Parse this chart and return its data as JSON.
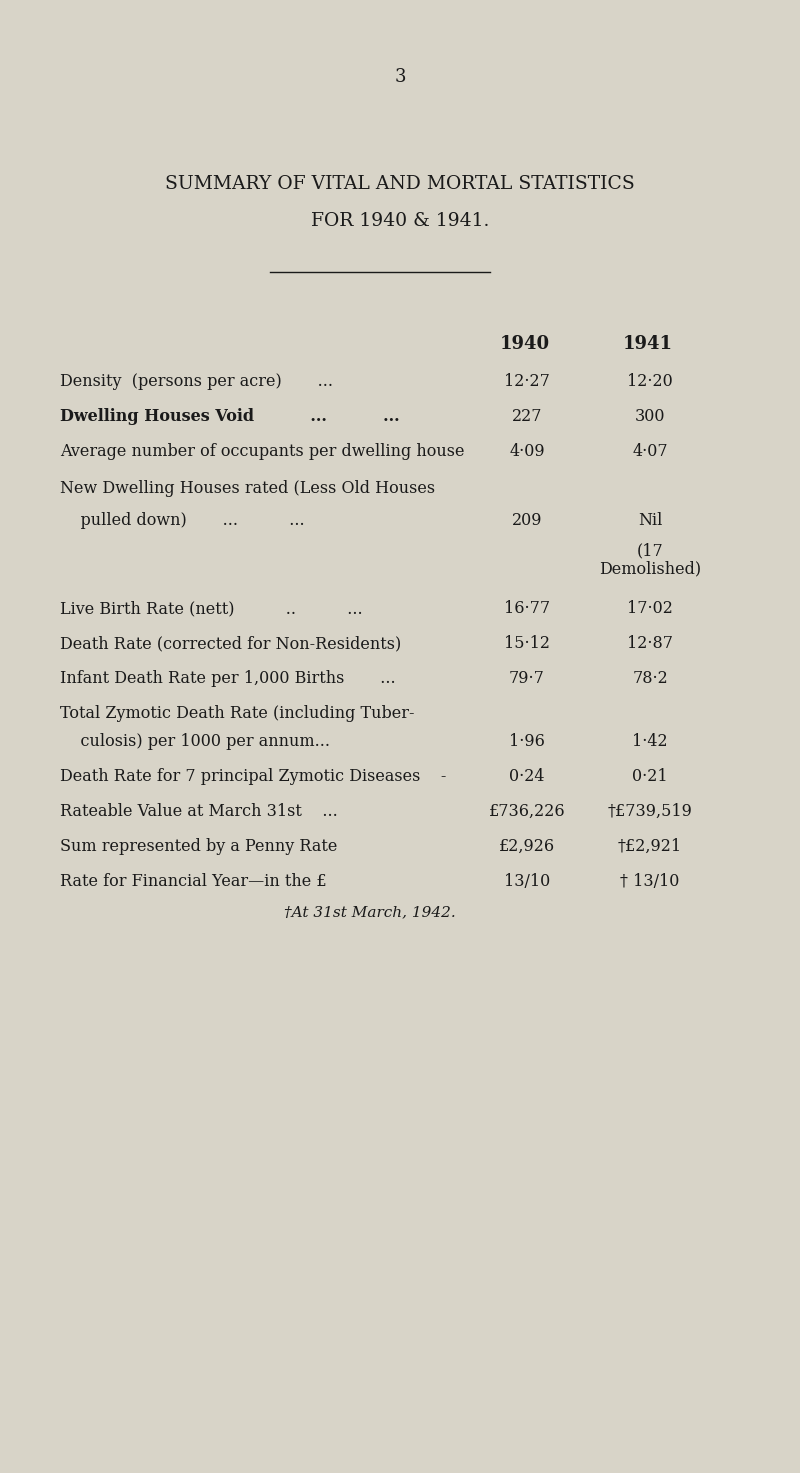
{
  "page_number": "3",
  "title_line1": "SUMMARY OF VITAL AND MORTAL STATISTICS",
  "title_line2": "FOR 1940 & 1941.",
  "col_headers": [
    "1940",
    "1941"
  ],
  "rows": [
    {
      "label": "Density  (persons per acre)       ...",
      "val1": "12·27",
      "val2": "12·20",
      "indent": false,
      "bold": false
    },
    {
      "label": "Dwelling Houses Void          ...          ...",
      "val1": "227",
      "val2": "300",
      "indent": false,
      "bold": true
    },
    {
      "label": "Average number of occupants per dwelling house",
      "val1": "4·09",
      "val2": "4·07",
      "indent": false,
      "bold": false
    },
    {
      "label": "New Dwelling Houses rated (Less Old Houses",
      "val1": "",
      "val2": "",
      "indent": false,
      "bold": false
    },
    {
      "label": "    pulled down)       ...          ...",
      "val1": "209",
      "val2": "Nil",
      "indent": true,
      "bold": false
    },
    {
      "label": "",
      "val1": "",
      "val2": "(17",
      "indent": false,
      "bold": false
    },
    {
      "label": "",
      "val1": "",
      "val2": "Demolished)",
      "indent": false,
      "bold": false
    },
    {
      "label": "Live Birth Rate (nett)          ..          ...",
      "val1": "16·77",
      "val2": "17·02",
      "indent": false,
      "bold": false
    },
    {
      "label": "Death Rate (corrected for Non-Residents)",
      "val1": "15·12",
      "val2": "12·87",
      "indent": false,
      "bold": false
    },
    {
      "label": "Infant Death Rate per 1,000 Births       ...",
      "val1": "79·7",
      "val2": "78·2",
      "indent": false,
      "bold": false
    },
    {
      "label": "Total Zymotic Death Rate (including Tuber-",
      "val1": "",
      "val2": "",
      "indent": false,
      "bold": false
    },
    {
      "label": "    culosis) per 1000 per annum...",
      "val1": "1·96",
      "val2": "1·42",
      "indent": true,
      "bold": false
    },
    {
      "label": "Death Rate for 7 principal Zymotic Diseases    -",
      "val1": "0·24",
      "val2": "0·21",
      "indent": false,
      "bold": false
    },
    {
      "label": "Rateable Value at March 31st    ...",
      "val1": "£736,226",
      "val2": "†£739,519",
      "indent": false,
      "bold": false
    },
    {
      "label": "Sum represented by a Penny Rate",
      "val1": "£2,926",
      "val2": "†£2,921",
      "indent": false,
      "bold": false
    },
    {
      "label": "Rate for Financial Year—in the £",
      "val1": "13/10",
      "val2": "† 13/10",
      "indent": false,
      "bold": false
    }
  ],
  "footnote": "†At 31st March, 1942.",
  "bg_color": "#d8d4c8",
  "text_color": "#1a1a1a",
  "title_fontsize": 13.5,
  "body_fontsize": 11.5,
  "header_fontsize": 13,
  "page_num_fontsize": 13
}
